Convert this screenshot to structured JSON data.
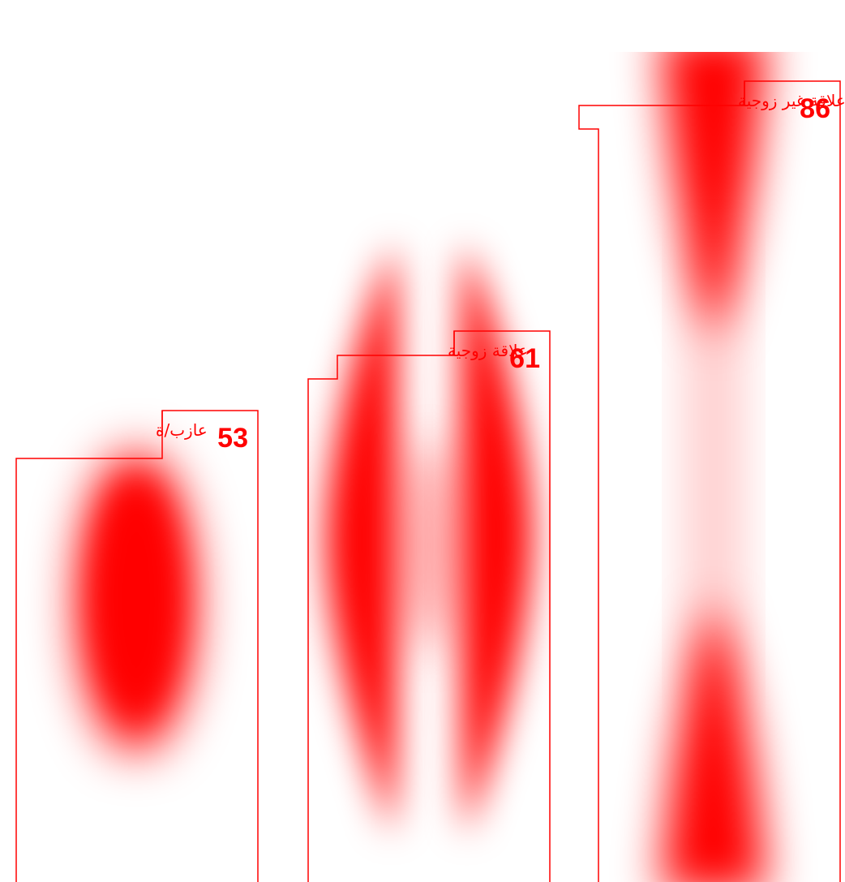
{
  "chart_data": {
    "type": "bar",
    "categories": [
      "عازب/ة",
      "علاقة زوجية",
      "علاقة غير زوجية"
    ],
    "values": [
      53,
      61,
      86
    ],
    "title": "",
    "xlabel": "",
    "ylabel": "",
    "ylim": [
      0,
      100
    ],
    "grid": false,
    "legend": "none",
    "colors": {
      "accent": "#ff0000",
      "background": "#ffffff"
    }
  }
}
